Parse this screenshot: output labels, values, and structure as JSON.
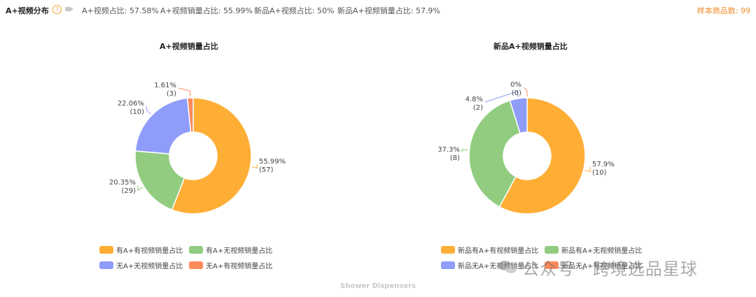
{
  "header": {
    "title": "A+视频分布",
    "help_glyph": "?",
    "stats": [
      "A+视频占比: 57.58%",
      "A+视频销量占比: 55.99%",
      "新品A+视频占比: 50%",
      "新品A+视频销量占比: 57.9%"
    ],
    "sample_count": "样本商品数: 99"
  },
  "footer_label": "Shower Dispensers",
  "watermark_text": "公众号 · 跨境选品星球",
  "chart_data": [
    {
      "type": "pie",
      "title": "A+视频销量占比",
      "donut": true,
      "slices": [
        {
          "name": "有A+有视频销量占比",
          "percent": 55.99,
          "count": 57,
          "color": "#FFAE35"
        },
        {
          "name": "有A+无视频销量占比",
          "percent": 20.35,
          "count": 29,
          "color": "#91CC81"
        },
        {
          "name": "无A+无视频销量占比",
          "percent": 22.06,
          "count": 10,
          "color": "#8F9CF9"
        },
        {
          "name": "无A+有视频销量占比",
          "percent": 1.61,
          "count": 3,
          "color": "#FF8A5B"
        }
      ],
      "labels": [
        {
          "pct": "55.99%",
          "count": "(57)"
        },
        {
          "pct": "20.35%",
          "count": "(29)"
        },
        {
          "pct": "22.06%",
          "count": "(10)"
        },
        {
          "pct": "1.61%",
          "count": "(3)"
        }
      ],
      "legend_placement": "bottom"
    },
    {
      "type": "pie",
      "title": "新品A+视频销量占比",
      "donut": true,
      "slices": [
        {
          "name": "新品有A+有视频销量占比",
          "percent": 57.9,
          "count": 10,
          "color": "#FFAE35"
        },
        {
          "name": "新品有A+无视频销量占比",
          "percent": 37.3,
          "count": 8,
          "color": "#91CC81"
        },
        {
          "name": "新品无A+无视频销量占比",
          "percent": 4.8,
          "count": 2,
          "color": "#8F9CF9"
        },
        {
          "name": "新品无A+有视频销量占比",
          "percent": 0,
          "count": 0,
          "color": "#FF8A5B"
        }
      ],
      "labels": [
        {
          "pct": "57.9%",
          "count": "(10)"
        },
        {
          "pct": "37.3%",
          "count": "(8)"
        },
        {
          "pct": "4.8%",
          "count": "(2)"
        },
        {
          "pct": "0%",
          "count": "(0)"
        }
      ],
      "legend_placement": "bottom"
    }
  ]
}
